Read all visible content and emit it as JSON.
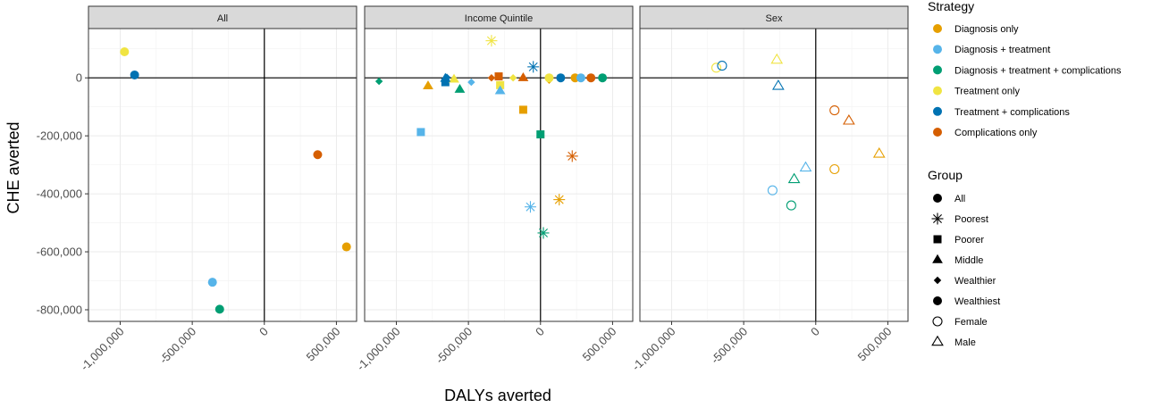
{
  "chart_data": {
    "type": "scatter",
    "xlabel": "DALYs averted",
    "ylabel": "CHE averted",
    "xlim": [
      -1220000,
      640000
    ],
    "ylim": [
      -840000,
      170000
    ],
    "x_ticks": [
      {
        "value": -1000000,
        "label": "-1,000,000"
      },
      {
        "value": -500000,
        "label": "-500,000"
      },
      {
        "value": 0,
        "label": "0"
      },
      {
        "value": 500000,
        "label": "500,000"
      }
    ],
    "y_ticks": [
      {
        "value": 0,
        "label": "0"
      },
      {
        "value": -200000,
        "label": "-200,000"
      },
      {
        "value": -400000,
        "label": "-400,000"
      },
      {
        "value": -600000,
        "label": "-600,000"
      },
      {
        "value": -800000,
        "label": "-800,000"
      }
    ],
    "grid": true,
    "facets": [
      "All",
      "Income Quintile",
      "Sex"
    ],
    "legend_position": "right",
    "legend": {
      "strategy_title": "Strategy",
      "strategies": [
        {
          "name": "Diagnosis only",
          "color": "#E69F00"
        },
        {
          "name": "Diagnosis + treatment",
          "color": "#56B4E9"
        },
        {
          "name": "Diagnosis + treatment + complications",
          "color": "#009E73"
        },
        {
          "name": "Treatment only",
          "color": "#F0E442"
        },
        {
          "name": "Treatment + complications",
          "color": "#0072B2"
        },
        {
          "name": "Complications only",
          "color": "#D55E00"
        }
      ],
      "group_title": "Group",
      "groups": [
        {
          "name": "All",
          "shape": "circle-filled"
        },
        {
          "name": "Poorest",
          "shape": "asterisk"
        },
        {
          "name": "Poorer",
          "shape": "square-filled"
        },
        {
          "name": "Middle",
          "shape": "triangle-filled"
        },
        {
          "name": "Wealthier",
          "shape": "diamond-filled"
        },
        {
          "name": "Wealthiest",
          "shape": "circle-filled"
        },
        {
          "name": "Female",
          "shape": "circle-open"
        },
        {
          "name": "Male",
          "shape": "triangle-open"
        }
      ]
    },
    "points": [
      {
        "facet": 0,
        "strategy": 3,
        "group": "All",
        "x": -970000,
        "y": 90000
      },
      {
        "facet": 0,
        "strategy": 4,
        "group": "All",
        "x": -900000,
        "y": 10000
      },
      {
        "facet": 0,
        "strategy": 5,
        "group": "All",
        "x": 370000,
        "y": -265000
      },
      {
        "facet": 0,
        "strategy": 0,
        "group": "All",
        "x": 570000,
        "y": -583000
      },
      {
        "facet": 0,
        "strategy": 1,
        "group": "All",
        "x": -360000,
        "y": -705000
      },
      {
        "facet": 0,
        "strategy": 2,
        "group": "All",
        "x": -310000,
        "y": -798000
      },
      {
        "facet": 1,
        "strategy": 3,
        "group": "Poorest",
        "x": -340000,
        "y": 128000
      },
      {
        "facet": 1,
        "strategy": 4,
        "group": "Poorest",
        "x": -50000,
        "y": 38000
      },
      {
        "facet": 1,
        "strategy": 5,
        "group": "Poorest",
        "x": 220000,
        "y": -270000
      },
      {
        "facet": 1,
        "strategy": 0,
        "group": "Poorest",
        "x": 130000,
        "y": -420000
      },
      {
        "facet": 1,
        "strategy": 1,
        "group": "Poorest",
        "x": -70000,
        "y": -445000
      },
      {
        "facet": 1,
        "strategy": 2,
        "group": "Poorest",
        "x": 20000,
        "y": -535000
      },
      {
        "facet": 1,
        "strategy": 1,
        "group": "Poorer",
        "x": -830000,
        "y": -187000
      },
      {
        "facet": 1,
        "strategy": 0,
        "group": "Poorer",
        "x": -120000,
        "y": -110000
      },
      {
        "facet": 1,
        "strategy": 2,
        "group": "Poorer",
        "x": 0,
        "y": -195000
      },
      {
        "facet": 1,
        "strategy": 5,
        "group": "Poorer",
        "x": -290000,
        "y": 5000
      },
      {
        "facet": 1,
        "strategy": 4,
        "group": "Poorer",
        "x": -660000,
        "y": -15000
      },
      {
        "facet": 1,
        "strategy": 3,
        "group": "Poorer",
        "x": -280000,
        "y": -25000
      },
      {
        "facet": 1,
        "strategy": 0,
        "group": "Middle",
        "x": -780000,
        "y": -28000
      },
      {
        "facet": 1,
        "strategy": 2,
        "group": "Middle",
        "x": -560000,
        "y": -40000
      },
      {
        "facet": 1,
        "strategy": 1,
        "group": "Middle",
        "x": -280000,
        "y": -45000
      },
      {
        "facet": 1,
        "strategy": 3,
        "group": "Middle",
        "x": -600000,
        "y": -5000
      },
      {
        "facet": 1,
        "strategy": 5,
        "group": "Middle",
        "x": -120000,
        "y": 0
      },
      {
        "facet": 1,
        "strategy": 4,
        "group": "Middle",
        "x": -660000,
        "y": -2000
      },
      {
        "facet": 1,
        "strategy": 2,
        "group": "Wealthier",
        "x": -1120000,
        "y": -12000
      },
      {
        "facet": 1,
        "strategy": 1,
        "group": "Wealthier",
        "x": -480000,
        "y": -15000
      },
      {
        "facet": 1,
        "strategy": 5,
        "group": "Wealthier",
        "x": -340000,
        "y": 0
      },
      {
        "facet": 1,
        "strategy": 3,
        "group": "Wealthier",
        "x": -190000,
        "y": 0
      },
      {
        "facet": 1,
        "strategy": 0,
        "group": "Wealthier",
        "x": 60000,
        "y": -8000
      },
      {
        "facet": 1,
        "strategy": 4,
        "group": "Wealthier",
        "x": -650000,
        "y": 2000
      },
      {
        "facet": 1,
        "strategy": 3,
        "group": "Wealthiest",
        "x": 60000,
        "y": 0
      },
      {
        "facet": 1,
        "strategy": 4,
        "group": "Wealthiest",
        "x": 140000,
        "y": 0
      },
      {
        "facet": 1,
        "strategy": 0,
        "group": "Wealthiest",
        "x": 240000,
        "y": 0
      },
      {
        "facet": 1,
        "strategy": 1,
        "group": "Wealthiest",
        "x": 280000,
        "y": 0
      },
      {
        "facet": 1,
        "strategy": 5,
        "group": "Wealthiest",
        "x": 350000,
        "y": 0
      },
      {
        "facet": 1,
        "strategy": 2,
        "group": "Wealthiest",
        "x": 430000,
        "y": 0
      },
      {
        "facet": 2,
        "strategy": 3,
        "group": "Female",
        "x": -690000,
        "y": 35000
      },
      {
        "facet": 2,
        "strategy": 4,
        "group": "Female",
        "x": -650000,
        "y": 42000
      },
      {
        "facet": 2,
        "strategy": 5,
        "group": "Female",
        "x": 130000,
        "y": -112000
      },
      {
        "facet": 2,
        "strategy": 0,
        "group": "Female",
        "x": 130000,
        "y": -315000
      },
      {
        "facet": 2,
        "strategy": 1,
        "group": "Female",
        "x": -300000,
        "y": -388000
      },
      {
        "facet": 2,
        "strategy": 2,
        "group": "Female",
        "x": -170000,
        "y": -440000
      },
      {
        "facet": 2,
        "strategy": 3,
        "group": "Male",
        "x": -270000,
        "y": 62000
      },
      {
        "facet": 2,
        "strategy": 4,
        "group": "Male",
        "x": -260000,
        "y": -28000
      },
      {
        "facet": 2,
        "strategy": 5,
        "group": "Male",
        "x": 230000,
        "y": -148000
      },
      {
        "facet": 2,
        "strategy": 0,
        "group": "Male",
        "x": 440000,
        "y": -262000
      },
      {
        "facet": 2,
        "strategy": 1,
        "group": "Male",
        "x": -70000,
        "y": -310000
      },
      {
        "facet": 2,
        "strategy": 2,
        "group": "Male",
        "x": -150000,
        "y": -350000
      }
    ]
  }
}
